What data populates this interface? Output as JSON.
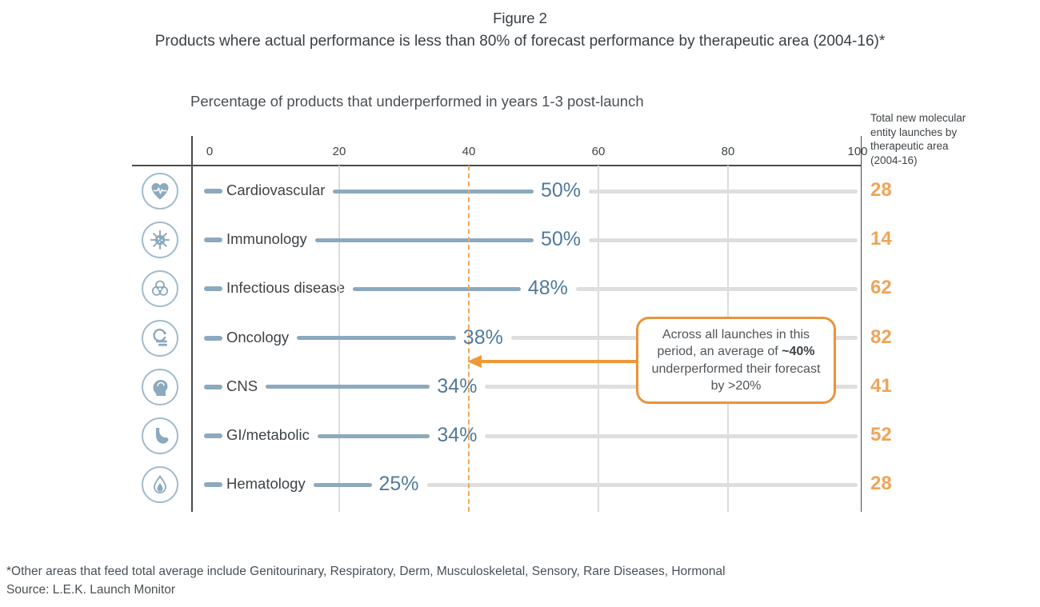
{
  "figure": {
    "label": "Figure 2",
    "title": "Products where actual performance is less than 80% of forecast performance by therapeutic area (2004-16)*"
  },
  "chart_data": {
    "type": "bar",
    "orientation": "horizontal",
    "title": "Percentage of products that underperformed in years 1-3 post-launch",
    "xlabel": "",
    "ylabel": "",
    "xlim": [
      0,
      100
    ],
    "x_ticks": [
      0,
      20,
      40,
      60,
      80,
      100
    ],
    "grid": true,
    "categories": [
      "Cardiovascular",
      "Immunology",
      "Infectious disease",
      "Oncology",
      "CNS",
      "GI/metabolic",
      "Hematology"
    ],
    "values": [
      50,
      50,
      48,
      38,
      34,
      34,
      25
    ],
    "value_labels": [
      "50%",
      "50%",
      "48%",
      "38%",
      "34%",
      "34%",
      "25%"
    ],
    "icons": [
      "heart-pulse",
      "virus",
      "biohazard",
      "radiotherapy",
      "head-brain",
      "stomach",
      "blood-drop"
    ],
    "counts_column": {
      "header": "Total new molecular entity launches by therapeutic area (2004-16)",
      "values": [
        28,
        14,
        62,
        82,
        41,
        52,
        28
      ]
    },
    "reference_line": {
      "value": 40,
      "style": "dashed",
      "color": "#f0a855"
    },
    "annotation": {
      "text_before": "Across all launches in this period, an average of ",
      "bold": "~40%",
      "text_after": " underperformed their forecast by >20%",
      "arrow_to_value": 40
    },
    "colors": {
      "bar": "#8ca9be",
      "value_text": "#527a9c",
      "count_text": "#f0a458",
      "accent_orange": "#e8943b",
      "track": "#dedede",
      "grid": "#dcdcdc",
      "axis": "#4b4b4b",
      "text": "#3f4448"
    }
  },
  "footnote": "*Other areas that feed total average include Genitourinary, Respiratory, Derm, Musculoskeletal, Sensory, Rare Diseases, Hormonal",
  "source": "Source: L.E.K. Launch Monitor"
}
